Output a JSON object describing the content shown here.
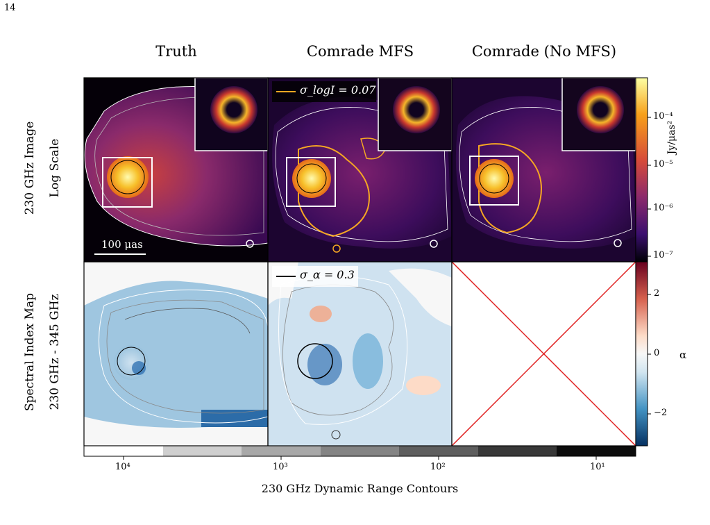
{
  "page_number": "14",
  "columns": [
    "Truth",
    "Comrade MFS",
    "Comrade (No MFS)"
  ],
  "rows": [
    {
      "line1": "230 GHz Image",
      "line2": "Log Scale"
    },
    {
      "line1": "Spectral Index Map",
      "line2": "230 GHz - 345 GHz"
    }
  ],
  "annotations": {
    "scale_bar": "100 μas",
    "sigma_logI": "σ_logI = 0.07",
    "sigma_alpha": "σ_α = 0.3"
  },
  "colorbar_top": {
    "label": "Jy/μas²",
    "ticks": [
      "10⁻⁴",
      "10⁻⁵",
      "10⁻⁶",
      "10⁻⁷"
    ],
    "colormap": "inferno",
    "scale": "log"
  },
  "colorbar_right_bottom": {
    "label": "α",
    "ticks": [
      "2",
      "0",
      "−2"
    ],
    "colormap": "RdBu_r",
    "range": [
      -3,
      3
    ]
  },
  "colorbar_bottom": {
    "label": "230 GHz Dynamic Range Contours",
    "ticks": [
      "10⁴",
      "10³",
      "10²",
      "10¹"
    ],
    "colormap": "greys"
  },
  "colors": {
    "sigma_logI_line": "#f5a623",
    "cross": "#e02020",
    "frame": "#000000"
  }
}
